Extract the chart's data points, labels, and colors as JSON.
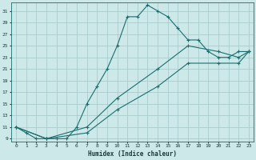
{
  "title": "",
  "xlabel": "Humidex (Indice chaleur)",
  "bg_color": "#cce8e8",
  "grid_color": "#aacccc",
  "line_color": "#1a6e6e",
  "xlim": [
    -0.5,
    23.5
  ],
  "ylim": [
    8.5,
    32.5
  ],
  "xticks": [
    0,
    1,
    2,
    3,
    4,
    5,
    6,
    7,
    8,
    9,
    10,
    11,
    12,
    13,
    14,
    15,
    16,
    17,
    18,
    19,
    20,
    21,
    22,
    23
  ],
  "yticks": [
    9,
    11,
    13,
    15,
    17,
    19,
    21,
    23,
    25,
    27,
    29,
    31
  ],
  "line1_x": [
    0,
    1,
    2,
    3,
    4,
    5,
    6,
    7,
    8,
    9,
    10,
    11,
    12,
    13,
    14,
    15,
    16,
    17,
    18,
    19,
    20,
    21,
    22,
    23
  ],
  "line1_y": [
    11,
    10,
    9,
    9,
    9,
    9,
    11,
    15,
    18,
    21,
    25,
    30,
    30,
    32,
    31,
    30,
    28,
    26,
    26,
    24,
    23,
    23,
    24,
    24
  ],
  "line2_x": [
    0,
    3,
    7,
    10,
    14,
    17,
    20,
    22,
    23
  ],
  "line2_y": [
    11,
    9,
    11,
    16,
    21,
    25,
    24,
    23,
    24
  ],
  "line3_x": [
    0,
    3,
    7,
    10,
    14,
    17,
    20,
    22,
    23
  ],
  "line3_y": [
    11,
    9,
    10,
    14,
    18,
    22,
    22,
    22,
    24
  ]
}
